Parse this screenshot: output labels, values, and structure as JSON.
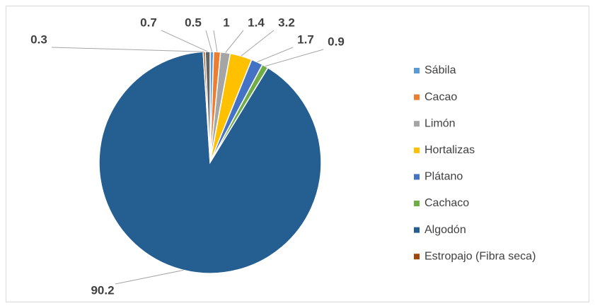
{
  "chart_data": {
    "type": "pie",
    "categories": [
      "Sábila",
      "Cacao",
      "Limón",
      "Hortalizas",
      "Plátano",
      "Cachaco",
      "Algodón",
      "Estropajo (Fibra seca)",
      null
    ],
    "values": [
      0.5,
      1,
      1.4,
      3.2,
      1.7,
      0.9,
      90.2,
      0.3,
      0.7
    ],
    "colors": [
      "#5B9BD5",
      "#ED7D31",
      "#A5A5A5",
      "#FFC000",
      "#4472C4",
      "#70AD47",
      "#255E91",
      "#9E480E",
      "#636363"
    ],
    "legend": "right"
  }
}
